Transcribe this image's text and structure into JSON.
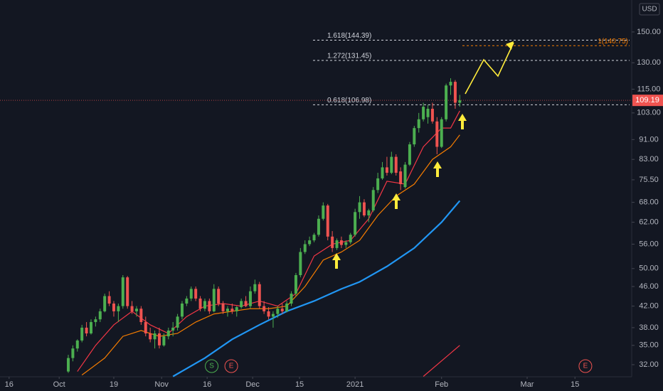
{
  "chart_data": {
    "type": "candlestick",
    "currency": "USD",
    "x": [
      2,
      3,
      4,
      5,
      6,
      7,
      8,
      9,
      10,
      11,
      12,
      13,
      14,
      15,
      16,
      17,
      18,
      19,
      20,
      21,
      22,
      23,
      24,
      25,
      26,
      27,
      28,
      29,
      30,
      31,
      32,
      33,
      34,
      35,
      36,
      37,
      38,
      39,
      40,
      41,
      42,
      43,
      44,
      45,
      46,
      47,
      48,
      49,
      50,
      51,
      52,
      53,
      54,
      55,
      56,
      57,
      58,
      59,
      60,
      61,
      62,
      63,
      64,
      65,
      66,
      67,
      68,
      69,
      70,
      71,
      72,
      73,
      74,
      75,
      76,
      77,
      78,
      79,
      80,
      81,
      82,
      83,
      84,
      85,
      86,
      87,
      88
    ],
    "open": [
      31,
      33,
      34.5,
      35.8,
      38,
      37,
      39,
      39.5,
      41,
      44,
      42.5,
      41,
      42,
      48,
      42,
      41,
      41.5,
      39,
      37,
      36,
      37,
      35,
      36.5,
      37.5,
      38,
      40,
      42.5,
      43.5,
      45.5,
      43.5,
      41.5,
      43,
      41,
      45.5,
      42.5,
      41,
      41.5,
      41,
      41.8,
      43,
      42,
      45,
      46.5,
      42,
      41,
      40,
      40.5,
      41.5,
      41,
      42.5,
      44.5,
      48.5,
      54,
      56,
      57,
      58.5,
      63,
      67,
      58,
      55,
      57,
      55.8,
      56.5,
      58.5,
      65,
      68,
      64,
      65.5,
      72,
      76,
      80,
      78,
      84,
      78.5,
      73,
      81,
      89,
      96,
      100,
      101,
      105,
      99,
      88,
      100,
      117,
      119,
      108
    ],
    "high": [
      33.5,
      35,
      36,
      38.5,
      39,
      39.5,
      40,
      41.5,
      44.5,
      45,
      43,
      42.5,
      48.5,
      48.3,
      43,
      42,
      42,
      40,
      38,
      37.5,
      38,
      37,
      38,
      39,
      40.5,
      43,
      44,
      46,
      46,
      44,
      43.5,
      43.5,
      46.5,
      46,
      43,
      42,
      42.5,
      42,
      43.5,
      44,
      46,
      47.5,
      47,
      43,
      41.8,
      41,
      42,
      42.5,
      43,
      45,
      49,
      55,
      57,
      58,
      59,
      64,
      68,
      67.5,
      59.5,
      57.5,
      58,
      57,
      59,
      66,
      70,
      69,
      66,
      73,
      78,
      82,
      84,
      86,
      85,
      80,
      82,
      90,
      97,
      103,
      108,
      107,
      108,
      101,
      101,
      118,
      121,
      120,
      112
    ],
    "low": [
      30.8,
      32.5,
      34,
      35.5,
      36.5,
      36.8,
      38.2,
      39,
      40.8,
      42,
      40,
      39,
      41.5,
      41.5,
      40.5,
      40,
      38.5,
      36.5,
      35.5,
      34.5,
      34.5,
      34.8,
      36,
      36.5,
      37.5,
      39.5,
      42,
      43,
      43,
      41,
      41,
      40.5,
      40.8,
      42,
      40.5,
      40,
      40.5,
      40,
      41.5,
      41.8,
      41.5,
      44.5,
      41.5,
      40.5,
      39.5,
      38,
      39.8,
      40.5,
      40.8,
      42,
      44,
      48,
      53.5,
      55.5,
      56.5,
      58,
      62.5,
      57,
      54,
      54.5,
      55,
      55,
      56,
      58,
      63,
      63.5,
      62,
      65,
      71,
      75.5,
      77,
      77.5,
      77,
      72,
      72.5,
      80.5,
      88,
      94,
      99,
      98,
      98,
      85,
      87.5,
      99,
      112,
      105,
      106
    ],
    "close": [
      33,
      34.5,
      35.8,
      38,
      37,
      39,
      39.5,
      41,
      44,
      42.5,
      41,
      42,
      48,
      42,
      41,
      41.5,
      39,
      37,
      36,
      37,
      35,
      36.5,
      37.5,
      38,
      40,
      42.5,
      43.5,
      45.5,
      43.5,
      41.5,
      43,
      41,
      45.5,
      42.5,
      41,
      41.5,
      41,
      41.8,
      43,
      42,
      45,
      46.5,
      42,
      41,
      40,
      40.5,
      41.5,
      41,
      42.5,
      44.5,
      48.5,
      54,
      56,
      57,
      58.5,
      63,
      67,
      58,
      55,
      57,
      55.8,
      56.5,
      58.5,
      65,
      68,
      64,
      65.5,
      72,
      76,
      80,
      78,
      84,
      78,
      74,
      81,
      89,
      96,
      100,
      106,
      105,
      99,
      88,
      100,
      117,
      119,
      108,
      109.19
    ],
    "up_color": "#4caf50",
    "down_color": "#ef5350",
    "series": [
      {
        "color": "#f23645",
        "x": [
          4,
          8,
          12,
          16,
          20,
          24,
          28,
          32,
          36,
          40,
          44,
          48,
          52,
          56,
          60,
          64,
          68,
          72,
          76,
          80,
          84,
          86,
          88
        ],
        "values": [
          31,
          35,
          38.5,
          41,
          38.5,
          37,
          40,
          42,
          42.5,
          42,
          43,
          42,
          44.5,
          53,
          56,
          57,
          63,
          75,
          74,
          88,
          96,
          96,
          104
        ]
      },
      {
        "color": "#f57c00",
        "x": [
          5,
          10,
          14,
          18,
          22,
          26,
          30,
          34,
          38,
          42,
          46,
          50,
          54,
          58,
          62,
          66,
          70,
          74,
          78,
          82,
          86,
          88
        ],
        "values": [
          30.5,
          33,
          36.5,
          37.5,
          36.5,
          37,
          39,
          40.5,
          41,
          41.5,
          41.5,
          42,
          46,
          52,
          54,
          57,
          64,
          70,
          74,
          83,
          88,
          93
        ]
      },
      {
        "color": "#2196f3",
        "x": [
          25,
          32,
          38,
          44,
          50,
          56,
          62,
          66,
          72,
          78,
          84,
          88
        ],
        "values": [
          30.3,
          33,
          36,
          38.5,
          41,
          43,
          45.5,
          47,
          50.5,
          55,
          62,
          68.5
        ]
      },
      {
        "color": "#f23645",
        "x": [
          80,
          88
        ],
        "values": [
          30.3,
          35
        ]
      }
    ],
    "levels": [
      {
        "label": "1.618(144.39)",
        "value": 144.39,
        "color": "#d1d4dc"
      },
      {
        "label": "1(140.75)",
        "value": 140.75,
        "color": "#f57c00"
      },
      {
        "label": "1.272(131.45)",
        "value": 131.45,
        "color": "#d1d4dc"
      },
      {
        "label": "0.618(106.98)",
        "value": 106.98,
        "color": "#d1d4dc"
      }
    ],
    "last_price": 109.19,
    "events": [
      {
        "x": 33.5,
        "label": "S",
        "color": "#4caf50"
      },
      {
        "x": 37.8,
        "label": "E",
        "color": "#ef5350"
      },
      {
        "x": 115.6,
        "label": "E",
        "color": "#ef5350"
      }
    ],
    "log_scale": true,
    "xlim": [
      -13,
      125.3
    ],
    "ylim": [
      30.25,
      174
    ],
    "xticks": [
      {
        "value": -11,
        "label": "16"
      },
      {
        "value": 0,
        "label": "Oct"
      },
      {
        "value": 12,
        "label": "19"
      },
      {
        "value": 22.5,
        "label": "Nov"
      },
      {
        "value": 32.5,
        "label": "16"
      },
      {
        "value": 42.5,
        "label": "Dec"
      },
      {
        "value": 52.8,
        "label": "15"
      },
      {
        "value": 65,
        "label": "2021"
      },
      {
        "value": 84,
        "label": "Feb"
      },
      {
        "value": 102.8,
        "label": "Mar"
      },
      {
        "value": 113.3,
        "label": "15"
      }
    ],
    "yticks": [
      {
        "value": 32,
        "label": "32.00"
      },
      {
        "value": 35,
        "label": "35.00"
      },
      {
        "value": 38,
        "label": "38.00"
      },
      {
        "value": 42,
        "label": "42.00"
      },
      {
        "value": 46,
        "label": "46.00"
      },
      {
        "value": 50,
        "label": "50.00"
      },
      {
        "value": 56,
        "label": "56.00"
      },
      {
        "value": 62,
        "label": "62.00"
      },
      {
        "value": 68,
        "label": "68.00"
      },
      {
        "value": 75.5,
        "label": "75.50"
      },
      {
        "value": 83,
        "label": "83.00"
      },
      {
        "value": 91,
        "label": "91.00"
      },
      {
        "value": 103,
        "label": "103.00"
      },
      {
        "value": 115,
        "label": "115.00"
      },
      {
        "value": 130,
        "label": "130.00"
      },
      {
        "value": 150,
        "label": "150.00"
      }
    ]
  }
}
